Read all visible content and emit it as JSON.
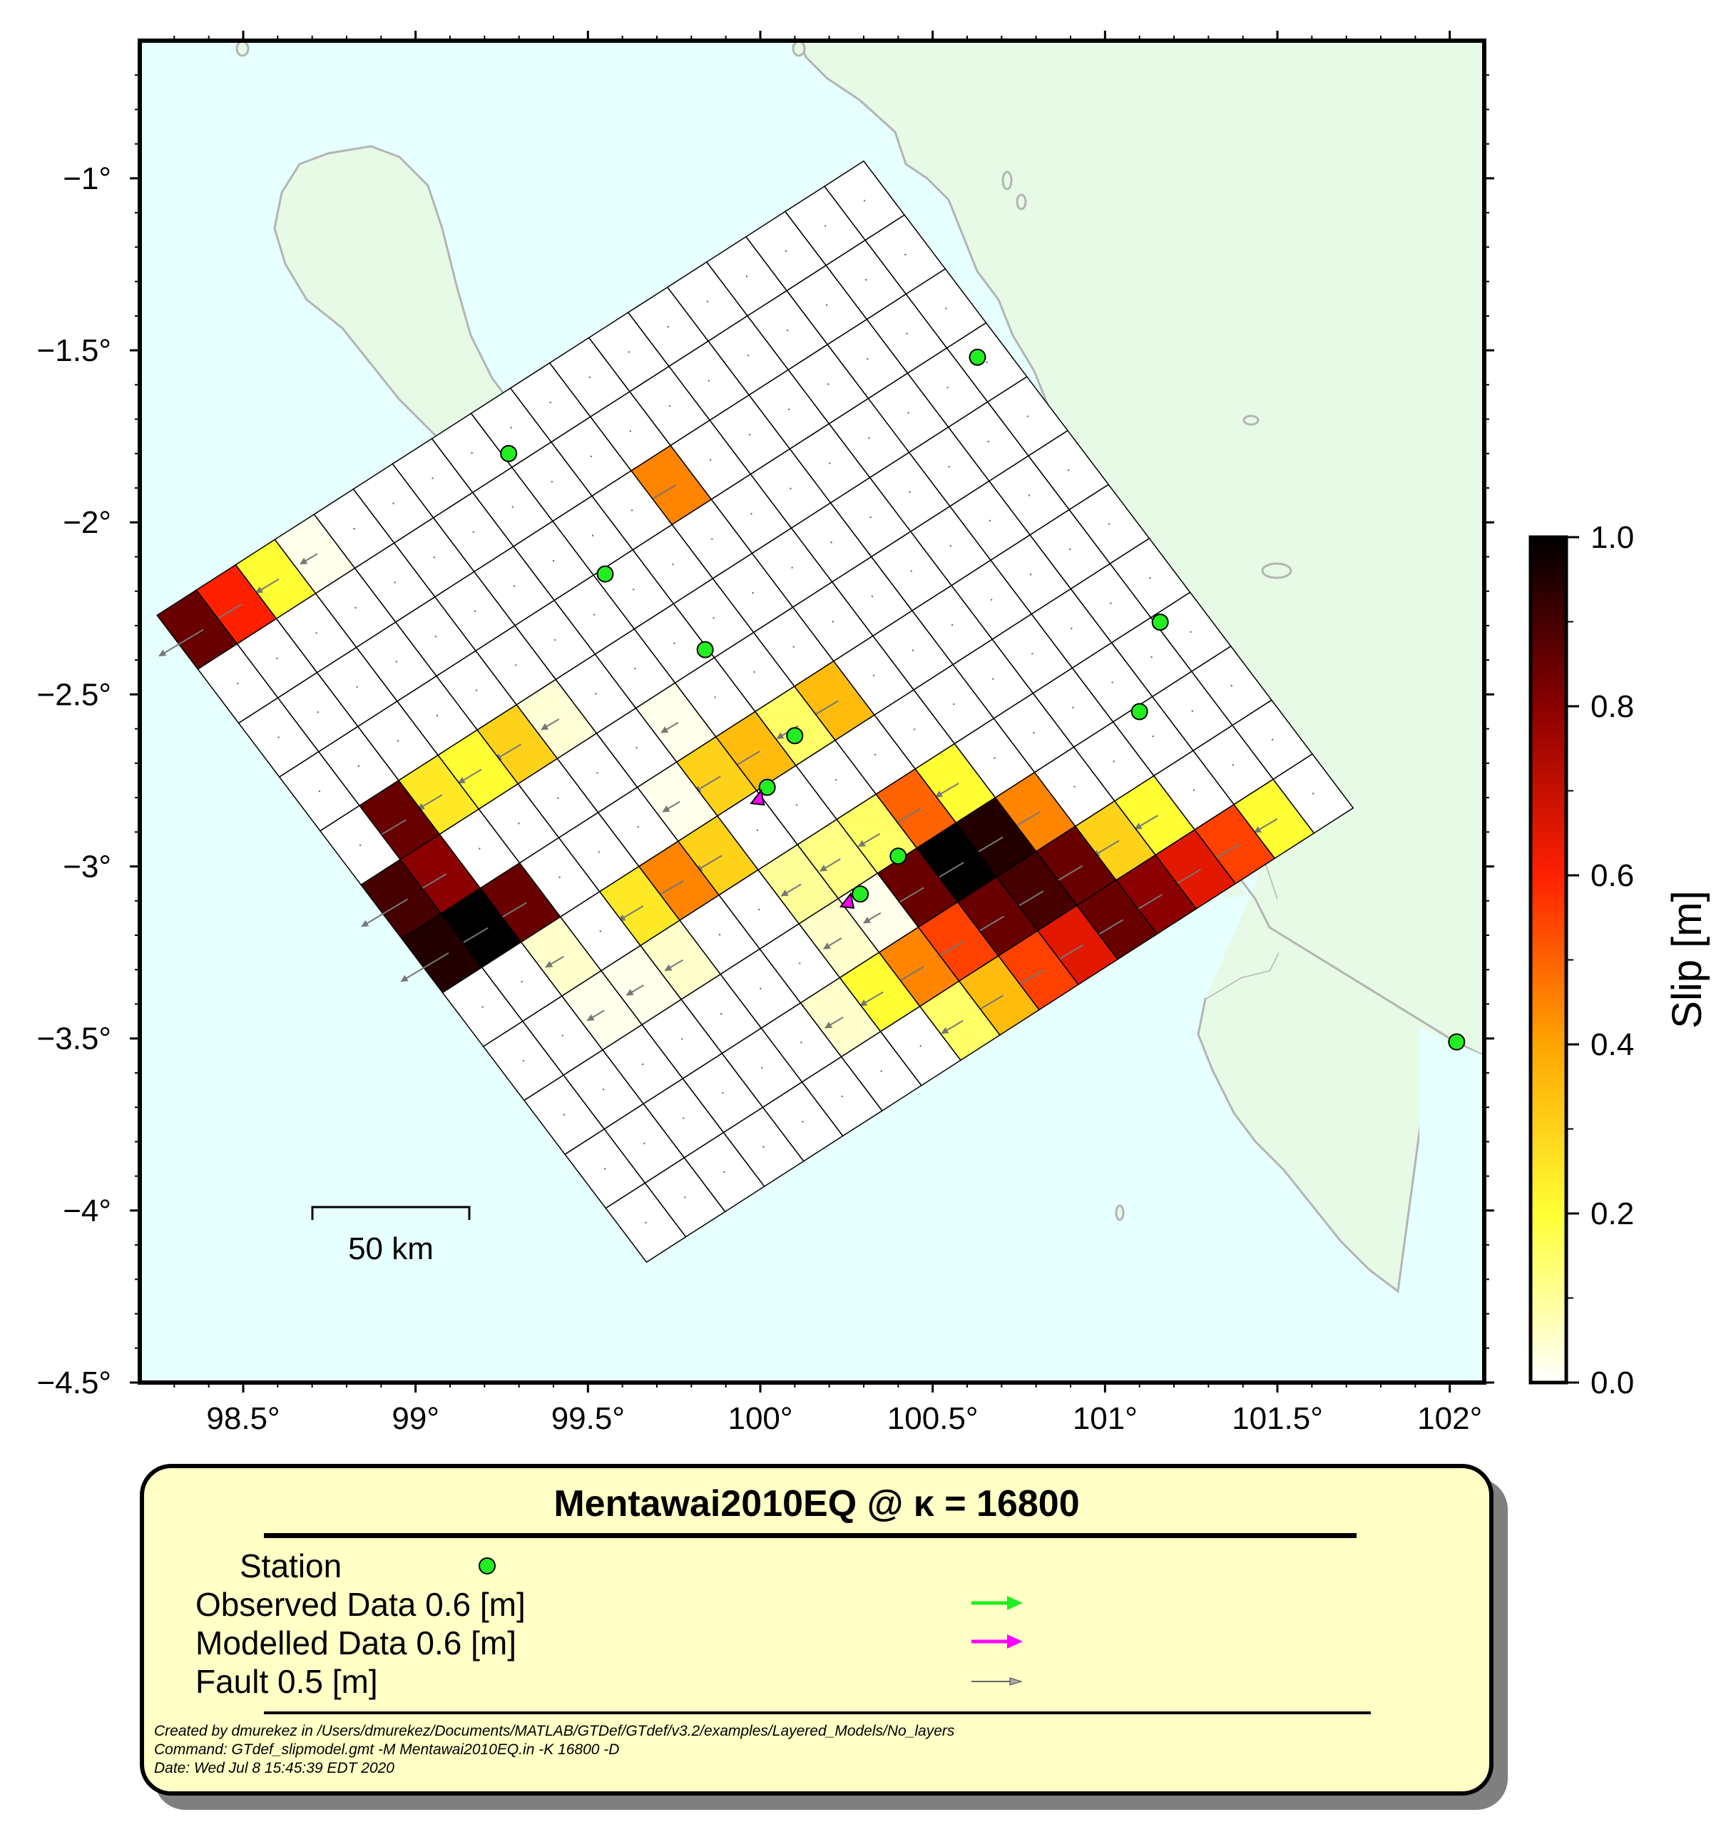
{
  "map": {
    "lon_range": [
      98.2,
      102.1
    ],
    "lat_range": [
      -4.5,
      -0.6
    ],
    "x_ticks": [
      98.5,
      99.0,
      99.5,
      100.0,
      100.5,
      101.0,
      101.5,
      102.0
    ],
    "x_tick_labels": [
      "98.5°",
      "99°",
      "99.5°",
      "100°",
      "100.5°",
      "101°",
      "101.5°",
      "102°"
    ],
    "y_ticks": [
      -1.0,
      -1.5,
      -2.0,
      -2.5,
      -3.0,
      -3.5,
      -4.0,
      -4.5
    ],
    "y_tick_labels": [
      "−1°",
      "−1.5°",
      "−2°",
      "−2.5°",
      "−3°",
      "−3.5°",
      "−4°",
      "−4.5°"
    ],
    "colors": {
      "sea": "#e6ffff",
      "land": "#e6fae6",
      "coast": "#b4b4b4",
      "station": "#22ee22"
    },
    "scale_bar": {
      "label": "50 km",
      "length_km": 50
    }
  },
  "fault": {
    "corners_lonlat": {
      "top": [
        100.3,
        -0.95
      ],
      "left": [
        98.25,
        -2.27
      ],
      "bottom": [
        99.98,
        -4.15
      ],
      "right": [
        101.72,
        -2.83
      ]
    },
    "columns": 18,
    "rows": 12,
    "slip_m": [
      [
        0,
        0,
        0,
        0,
        0,
        0,
        0,
        0,
        0,
        0,
        0,
        0,
        0,
        0,
        0.02,
        0.2,
        0.6,
        0.85
      ],
      [
        0,
        0,
        0,
        0,
        0,
        0,
        0,
        0,
        0,
        0,
        0,
        0,
        0,
        0,
        0,
        0,
        0,
        0
      ],
      [
        0,
        0,
        0,
        0,
        0,
        0,
        0,
        0.45,
        0,
        0,
        0,
        0,
        0,
        0,
        0,
        0,
        0,
        0
      ],
      [
        0,
        0,
        0,
        0,
        0,
        0,
        0,
        0,
        0,
        0,
        0,
        0,
        0,
        0,
        0,
        0,
        0,
        0
      ],
      [
        0,
        0,
        0,
        0,
        0,
        0,
        0,
        0,
        0,
        0,
        0,
        0,
        0.04,
        0.3,
        0.2,
        0.25,
        0.85,
        0
      ],
      [
        0,
        0,
        0,
        0,
        0,
        0,
        0,
        0,
        0,
        0,
        0.02,
        0,
        0,
        0,
        0,
        0,
        0.8,
        0.9
      ],
      [
        0,
        0,
        0,
        0,
        0,
        0,
        0,
        0.35,
        0.15,
        0.35,
        0.3,
        0.02,
        0,
        0,
        0,
        0.85,
        1.0,
        0.95
      ],
      [
        0,
        0,
        0,
        0,
        0,
        0,
        0,
        0,
        0,
        0,
        0,
        0.3,
        0.45,
        0.25,
        0,
        0.05,
        0,
        0
      ],
      [
        0,
        0,
        0,
        0,
        0,
        0,
        0.2,
        0.5,
        0.15,
        0.12,
        0.1,
        0,
        0,
        0.05,
        0.02,
        0.02,
        0,
        0
      ],
      [
        0,
        0,
        0,
        0,
        0,
        0.45,
        0.95,
        1.0,
        0.85,
        0.02,
        0.05,
        0,
        0,
        0,
        0,
        0,
        0,
        0
      ],
      [
        0,
        0,
        0,
        0.2,
        0.3,
        0.85,
        0.9,
        0.85,
        0.55,
        0.45,
        0.2,
        0.05,
        0,
        0,
        0,
        0,
        0,
        0
      ],
      [
        0,
        0.2,
        0.55,
        0.65,
        0.8,
        0.85,
        0.65,
        0.55,
        0.35,
        0.15,
        0,
        0,
        0,
        0,
        0,
        0,
        0,
        0
      ]
    ]
  },
  "stations": [
    {
      "lon": 99.27,
      "lat": -1.8
    },
    {
      "lon": 99.55,
      "lat": -2.15
    },
    {
      "lon": 99.84,
      "lat": -2.37
    },
    {
      "lon": 100.1,
      "lat": -2.62
    },
    {
      "lon": 100.02,
      "lat": -2.77
    },
    {
      "lon": 100.4,
      "lat": -2.97
    },
    {
      "lon": 100.29,
      "lat": -3.08
    },
    {
      "lon": 100.63,
      "lat": -1.52
    },
    {
      "lon": 101.16,
      "lat": -2.29
    },
    {
      "lon": 101.1,
      "lat": -2.55
    },
    {
      "lon": 102.02,
      "lat": -3.51
    }
  ],
  "colorbar": {
    "label": "Slip [m]",
    "min": 0.0,
    "max": 1.0,
    "ticks": [
      0.0,
      0.2,
      0.4,
      0.6,
      0.8,
      1.0
    ],
    "tick_labels": [
      "0.0",
      "0.2",
      "0.4",
      "0.6",
      "0.8",
      "1.0"
    ],
    "stops": [
      "#ffffff",
      "#ffff33",
      "#ffa500",
      "#ff2000",
      "#8b0000",
      "#000000"
    ]
  },
  "legend": {
    "title": "Mentawai2010EQ @ κ = 16800",
    "entries": [
      {
        "label": "Station",
        "color": "#22ee22",
        "symbol": "circle"
      },
      {
        "label": "Observed Data 0.6 [m]",
        "color": "#22ee22",
        "symbol": "arrow"
      },
      {
        "label": "Modelled Data 0.6 [m]",
        "color": "#ff00ff",
        "symbol": "arrow"
      },
      {
        "label": "Fault 0.5 [m]",
        "color": "#888888",
        "symbol": "thin-arrow"
      }
    ],
    "meta": [
      "Created by dmurekez in /Users/dmurekez/Documents/MATLAB/GTDef/GTdef/v3.2/examples/Layered_Models/No_layers",
      "Command: GTdef_slipmodel.gmt -M Mentawai2010EQ.in -K 16800 -D",
      "Date: Wed Jul  8 15:45:39 EDT 2020"
    ]
  }
}
